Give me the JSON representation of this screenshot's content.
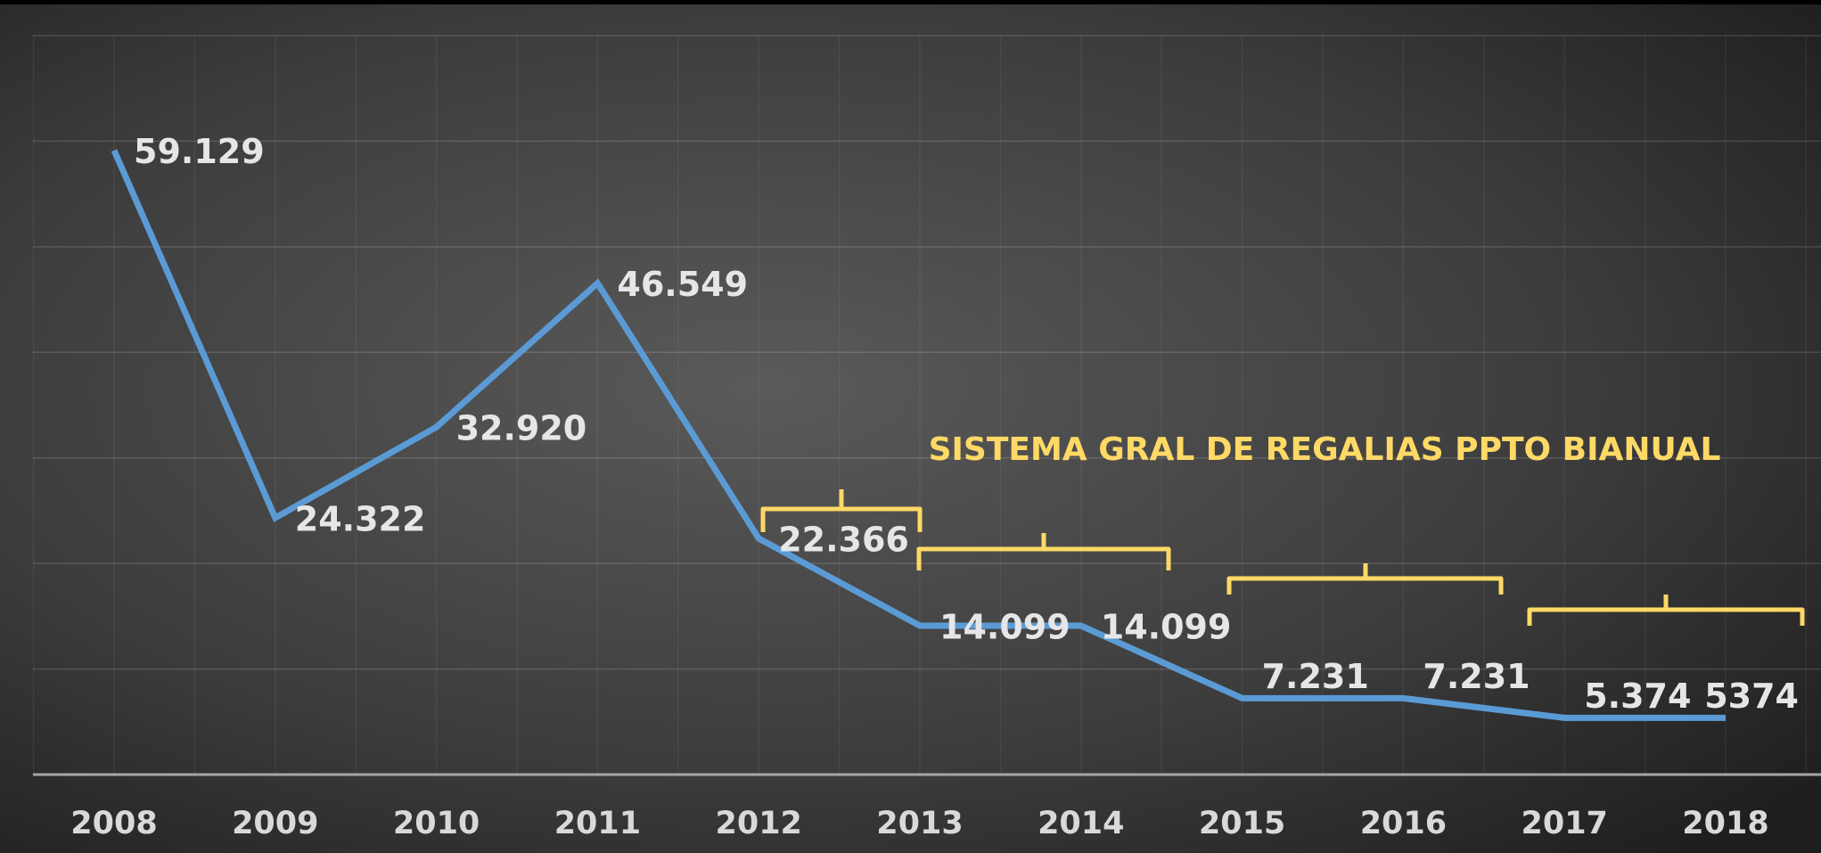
{
  "chart_data": {
    "type": "line",
    "annotation": "SISTEMA GRAL DE REGALIAS PPTO BIANUAL",
    "categories": [
      "2008",
      "2009",
      "2010",
      "2011",
      "2012",
      "2013",
      "2014",
      "2015",
      "2016",
      "2017",
      "2018"
    ],
    "series": [
      {
        "color": "#5b9bd5",
        "values": [
          59129,
          24322,
          32920,
          46549,
          22366,
          14099,
          14099,
          7231,
          7231,
          5374,
          5374
        ],
        "value_labels": [
          "59.129",
          "24.322",
          "32.920",
          "46.549",
          "22.366",
          "14.099",
          "14.099",
          "7.231",
          "7.231",
          "5.374",
          "5374"
        ]
      }
    ],
    "ylim": [
      0,
      70000
    ],
    "yticks": [
      0,
      10000,
      20000,
      30000,
      40000,
      50000,
      60000,
      70000
    ],
    "grid": true
  }
}
